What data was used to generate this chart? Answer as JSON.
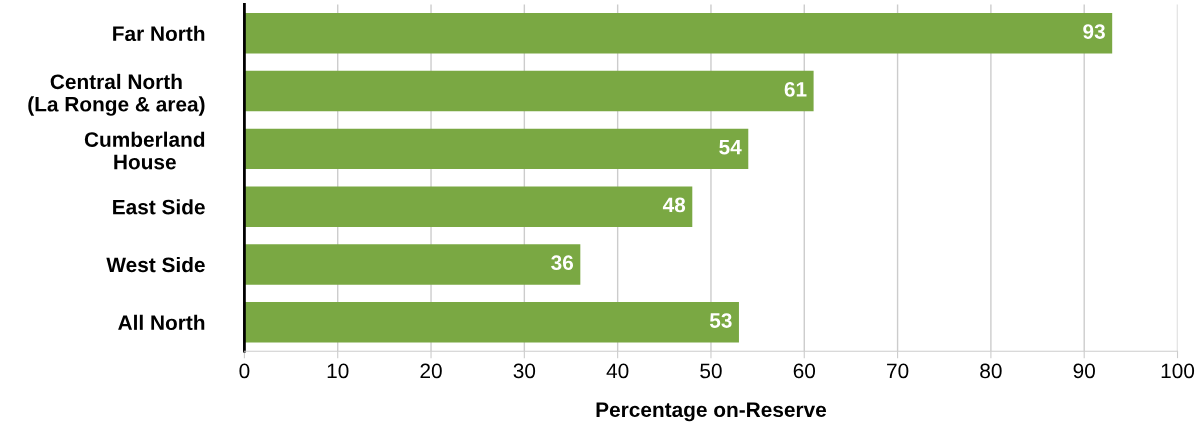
{
  "chart_data": {
    "type": "bar",
    "orientation": "horizontal",
    "xlabel": "Percentage on-Reserve",
    "categories": [
      "Far North",
      "Central North\n(La Ronge & area)",
      "Cumberland\nHouse",
      "East Side",
      "West Side",
      "All North"
    ],
    "values": [
      93,
      61,
      54,
      48,
      36,
      53
    ],
    "color": "#7aa843",
    "xlim": [
      0,
      100
    ],
    "xticks": [
      0,
      10,
      20,
      30,
      40,
      50,
      60,
      70,
      80,
      90,
      100
    ],
    "grid": "x",
    "data_labels": true
  }
}
